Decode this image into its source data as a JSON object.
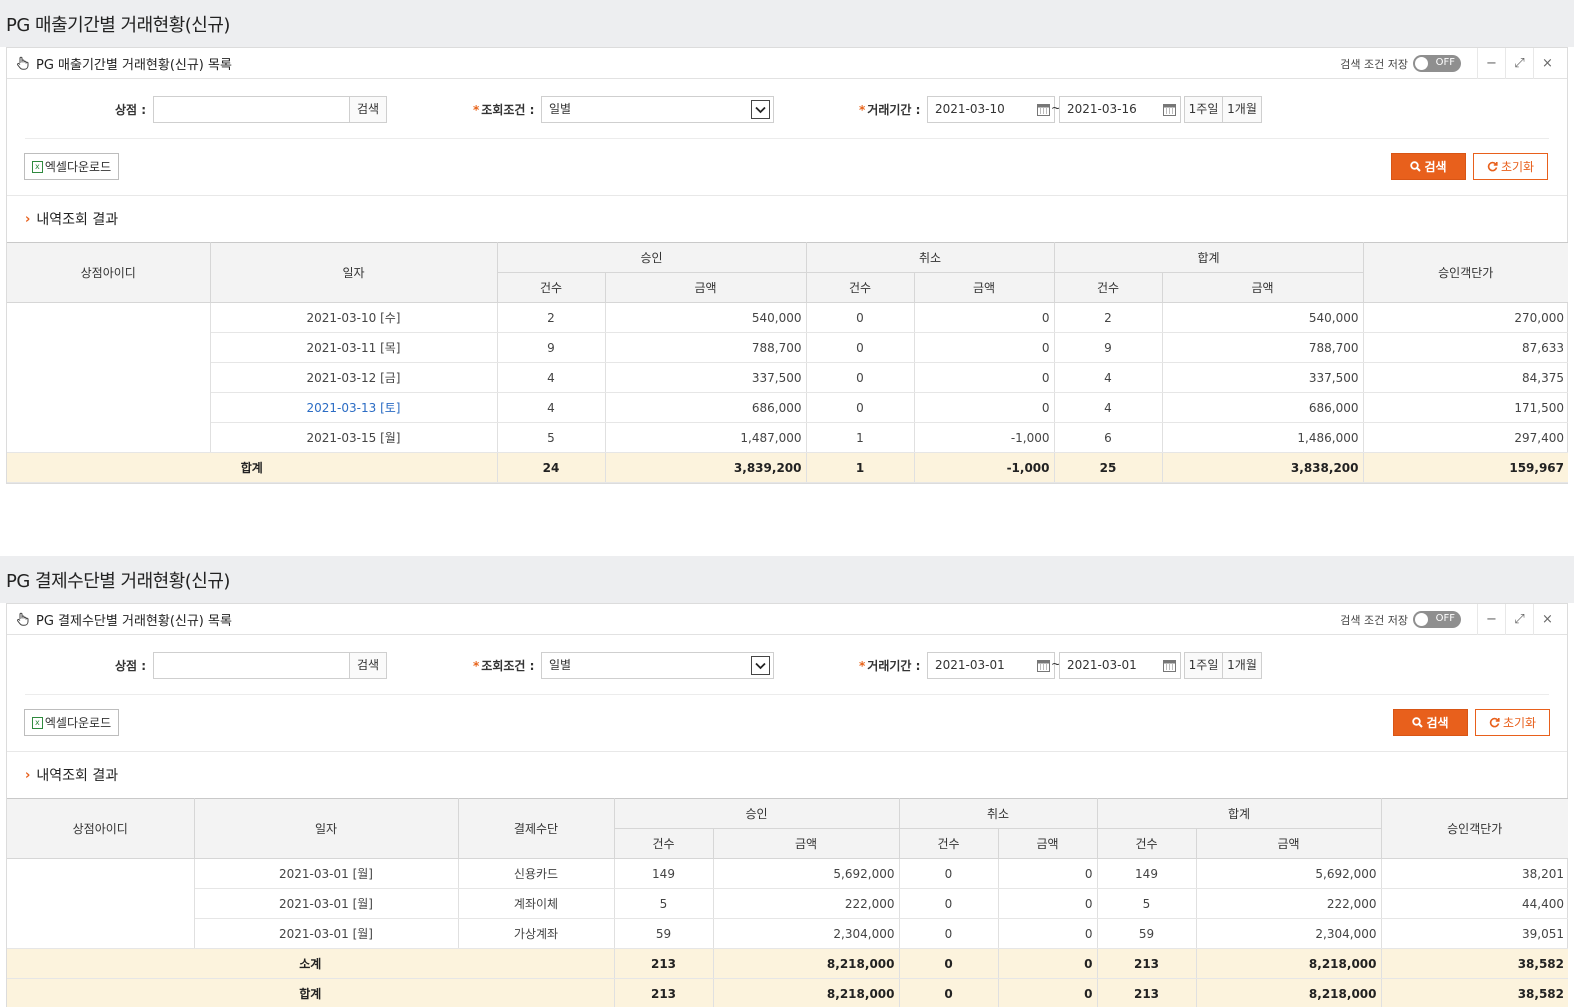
{
  "common": {
    "save_label": "검색 조건 저장",
    "toggle_text": "OFF",
    "minimize": "−",
    "maximize": "⤢",
    "close": "×",
    "store_label": "상점 :",
    "store_search": "검색",
    "condition_label": "조회조건 :",
    "condition_value": "일별",
    "period_label": "거래기간 :",
    "tilde": "~",
    "week_btn": "1주일",
    "month_btn": "1개월",
    "excel_label": "엑셀다운로드",
    "search_label": "검색",
    "reset_label": "초기화",
    "result_title": "내역조회 결과",
    "h_store": "상점아이디",
    "h_date": "일자",
    "h_method": "결제수단",
    "h_approve": "승인",
    "h_cancel": "취소",
    "h_total": "합계",
    "h_unit": "승인객단가",
    "h_count": "건수",
    "h_amount": "금액",
    "required_mark": "*"
  },
  "section1": {
    "page_title": "PG 매출기간별 거래현황(신규)",
    "panel_title": "PG 매출기간별 거래현황(신규) 목록",
    "date_from": "2021-03-10",
    "date_to": "2021-03-16",
    "rows": [
      {
        "date": "2021-03-10 [수]",
        "ac": "2",
        "aa": "540,000",
        "cc": "0",
        "ca": "0",
        "tc": "2",
        "ta": "540,000",
        "unit": "270,000"
      },
      {
        "date": "2021-03-11 [목]",
        "ac": "9",
        "aa": "788,700",
        "cc": "0",
        "ca": "0",
        "tc": "9",
        "ta": "788,700",
        "unit": "87,633"
      },
      {
        "date": "2021-03-12 [금]",
        "ac": "4",
        "aa": "337,500",
        "cc": "0",
        "ca": "0",
        "tc": "4",
        "ta": "337,500",
        "unit": "84,375"
      },
      {
        "date": "2021-03-13 [토]",
        "ac": "4",
        "aa": "686,000",
        "cc": "0",
        "ca": "0",
        "tc": "4",
        "ta": "686,000",
        "unit": "171,500"
      },
      {
        "date": "2021-03-15 [월]",
        "ac": "5",
        "aa": "1,487,000",
        "cc": "1",
        "ca": "-1,000",
        "tc": "6",
        "ta": "1,486,000",
        "unit": "297,400"
      }
    ],
    "total": {
      "label": "합계",
      "ac": "24",
      "aa": "3,839,200",
      "cc": "1",
      "ca": "-1,000",
      "tc": "25",
      "ta": "3,838,200",
      "unit": "159,967"
    }
  },
  "section2": {
    "page_title": "PG 결제수단별 거래현황(신규)",
    "panel_title": "PG 결제수단별 거래현황(신규) 목록",
    "date_from": "2021-03-01",
    "date_to": "2021-03-01",
    "rows": [
      {
        "date": "2021-03-01 [월]",
        "method": "신용카드",
        "ac": "149",
        "aa": "5,692,000",
        "cc": "0",
        "ca": "0",
        "tc": "149",
        "ta": "5,692,000",
        "unit": "38,201"
      },
      {
        "date": "2021-03-01 [월]",
        "method": "계좌이체",
        "ac": "5",
        "aa": "222,000",
        "cc": "0",
        "ca": "0",
        "tc": "5",
        "ta": "222,000",
        "unit": "44,400"
      },
      {
        "date": "2021-03-01 [월]",
        "method": "가상계좌",
        "ac": "59",
        "aa": "2,304,000",
        "cc": "0",
        "ca": "0",
        "tc": "59",
        "ta": "2,304,000",
        "unit": "39,051"
      }
    ],
    "subtotal": {
      "label": "소계",
      "ac": "213",
      "aa": "8,218,000",
      "cc": "0",
      "ca": "0",
      "tc": "213",
      "ta": "8,218,000",
      "unit": "38,582"
    },
    "total": {
      "label": "합계",
      "ac": "213",
      "aa": "8,218,000",
      "cc": "0",
      "ca": "0",
      "tc": "213",
      "ta": "8,218,000",
      "unit": "38,582"
    }
  }
}
